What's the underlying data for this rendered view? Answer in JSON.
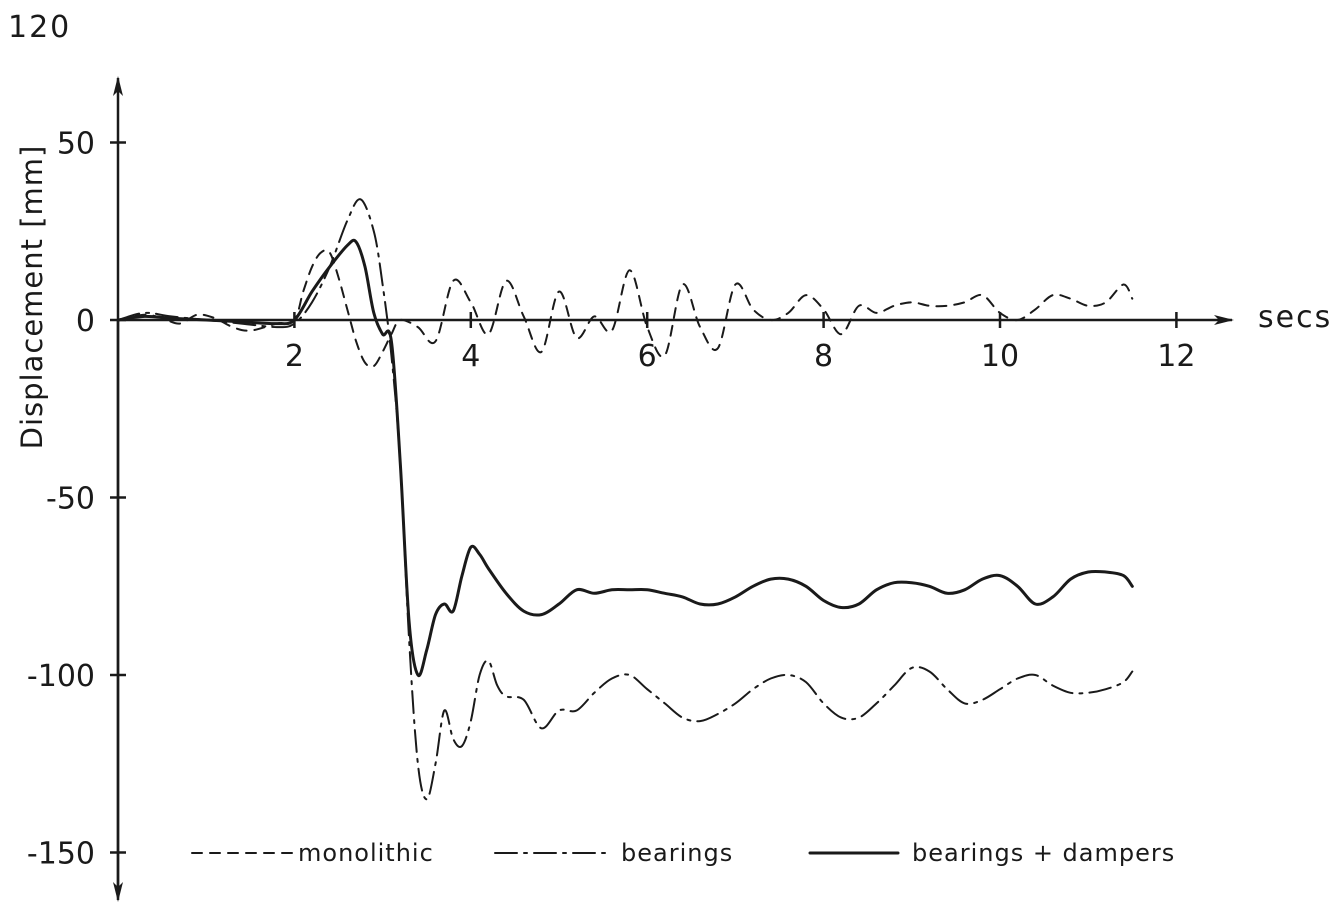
{
  "page_number": "120",
  "chart_data": {
    "type": "line",
    "title": "",
    "xlabel": "secs",
    "ylabel": "Displacement  [mm]",
    "xlim": [
      0,
      12.5
    ],
    "ylim": [
      -160,
      70
    ],
    "x_ticks": [
      2,
      4,
      6,
      8,
      10,
      12
    ],
    "x_tick_labels": [
      "2",
      "4",
      "6",
      "8",
      "10",
      "12"
    ],
    "y_ticks": [
      50,
      0,
      -50,
      -100,
      -150
    ],
    "y_tick_labels": [
      "50",
      "0",
      "-50",
      "-100",
      "-150"
    ],
    "grid": false,
    "legend_position": "bottom",
    "series": [
      {
        "name": "monolithic",
        "style": "dashed",
        "x": [
          0,
          0.3,
          0.5,
          0.7,
          0.9,
          1.1,
          1.3,
          1.5,
          1.8,
          2.0,
          2.1,
          2.2,
          2.3,
          2.4,
          2.5,
          2.6,
          2.7,
          2.8,
          2.9,
          3.0,
          3.1,
          3.2,
          3.4,
          3.6,
          3.8,
          4.0,
          4.2,
          4.4,
          4.6,
          4.8,
          5.0,
          5.2,
          5.4,
          5.6,
          5.8,
          6.0,
          6.2,
          6.4,
          6.6,
          6.8,
          7.0,
          7.2,
          7.4,
          7.6,
          7.8,
          8.0,
          8.2,
          8.4,
          8.6,
          8.8,
          9.0,
          9.2,
          9.4,
          9.6,
          9.8,
          10.0,
          10.2,
          10.4,
          10.6,
          10.8,
          11.0,
          11.2,
          11.4,
          11.5
        ],
        "y": [
          0,
          1.5,
          0.5,
          -1,
          1.5,
          0.5,
          -2,
          -3,
          -1,
          0,
          8,
          15,
          19,
          19,
          12,
          3,
          -6,
          -12,
          -13,
          -9,
          -4,
          0,
          -2,
          -6,
          11,
          5,
          -4,
          11,
          1,
          -9,
          8,
          -5,
          1,
          -3,
          14,
          -2,
          -10,
          10,
          -2,
          -8,
          10,
          3,
          0,
          2,
          7,
          3,
          -4,
          4,
          2,
          4,
          5,
          4,
          4,
          5,
          7,
          2,
          0,
          3,
          7,
          6,
          4,
          5,
          10,
          6
        ]
      },
      {
        "name": "bearings",
        "style": "dash-dot",
        "x": [
          0,
          0.3,
          0.6,
          1.0,
          1.4,
          1.8,
          2.0,
          2.2,
          2.4,
          2.6,
          2.75,
          2.9,
          3.0,
          3.1,
          3.2,
          3.3,
          3.4,
          3.5,
          3.6,
          3.7,
          3.8,
          3.9,
          4.0,
          4.1,
          4.2,
          4.3,
          4.4,
          4.6,
          4.8,
          5.0,
          5.2,
          5.4,
          5.6,
          5.8,
          6.0,
          6.2,
          6.4,
          6.6,
          6.8,
          7.0,
          7.2,
          7.4,
          7.6,
          7.8,
          8.0,
          8.2,
          8.4,
          8.6,
          8.8,
          9.0,
          9.2,
          9.4,
          9.6,
          9.8,
          10.0,
          10.2,
          10.4,
          10.6,
          10.8,
          11.0,
          11.2,
          11.4,
          11.5
        ],
        "y": [
          0,
          2,
          1,
          0,
          -1,
          -2,
          -1,
          5,
          15,
          28,
          34,
          25,
          10,
          -10,
          -40,
          -90,
          -125,
          -135,
          -125,
          -110,
          -118,
          -120,
          -113,
          -100,
          -96,
          -103,
          -106,
          -107,
          -115,
          -110,
          -110,
          -105,
          -101,
          -100,
          -104,
          -108,
          -112,
          -113,
          -111,
          -108,
          -104,
          -101,
          -100,
          -102,
          -108,
          -112,
          -112,
          -108,
          -103,
          -98,
          -99,
          -104,
          -108,
          -107,
          -104,
          -101,
          -100,
          -103,
          -105,
          -105,
          -104,
          -102,
          -99
        ]
      },
      {
        "name": "bearings + dampers",
        "style": "solid",
        "x": [
          0,
          0.3,
          0.6,
          1.0,
          1.4,
          1.8,
          2.0,
          2.2,
          2.4,
          2.6,
          2.7,
          2.8,
          2.9,
          3.0,
          3.1,
          3.2,
          3.3,
          3.4,
          3.5,
          3.6,
          3.7,
          3.8,
          3.9,
          4.0,
          4.1,
          4.2,
          4.4,
          4.6,
          4.8,
          5.0,
          5.2,
          5.4,
          5.6,
          5.8,
          6.0,
          6.2,
          6.4,
          6.6,
          6.8,
          7.0,
          7.2,
          7.4,
          7.6,
          7.8,
          8.0,
          8.2,
          8.4,
          8.6,
          8.8,
          9.0,
          9.2,
          9.4,
          9.6,
          9.8,
          10.0,
          10.2,
          10.4,
          10.6,
          10.8,
          11.0,
          11.2,
          11.4,
          11.5
        ],
        "y": [
          0,
          1,
          0.5,
          0,
          -0.5,
          -1,
          0,
          8,
          15,
          21,
          22,
          15,
          2,
          -4,
          -6,
          -40,
          -85,
          -100,
          -93,
          -83,
          -80,
          -82,
          -72,
          -64,
          -66,
          -70,
          -77,
          -82,
          -83,
          -80,
          -76,
          -77,
          -76,
          -76,
          -76,
          -77,
          -78,
          -80,
          -80,
          -78,
          -75,
          -73,
          -73,
          -75,
          -79,
          -81,
          -80,
          -76,
          -74,
          -74,
          -75,
          -77,
          -76,
          -73,
          -72,
          -75,
          -80,
          -78,
          -73,
          -71,
          -71,
          -72,
          -75
        ]
      }
    ]
  }
}
